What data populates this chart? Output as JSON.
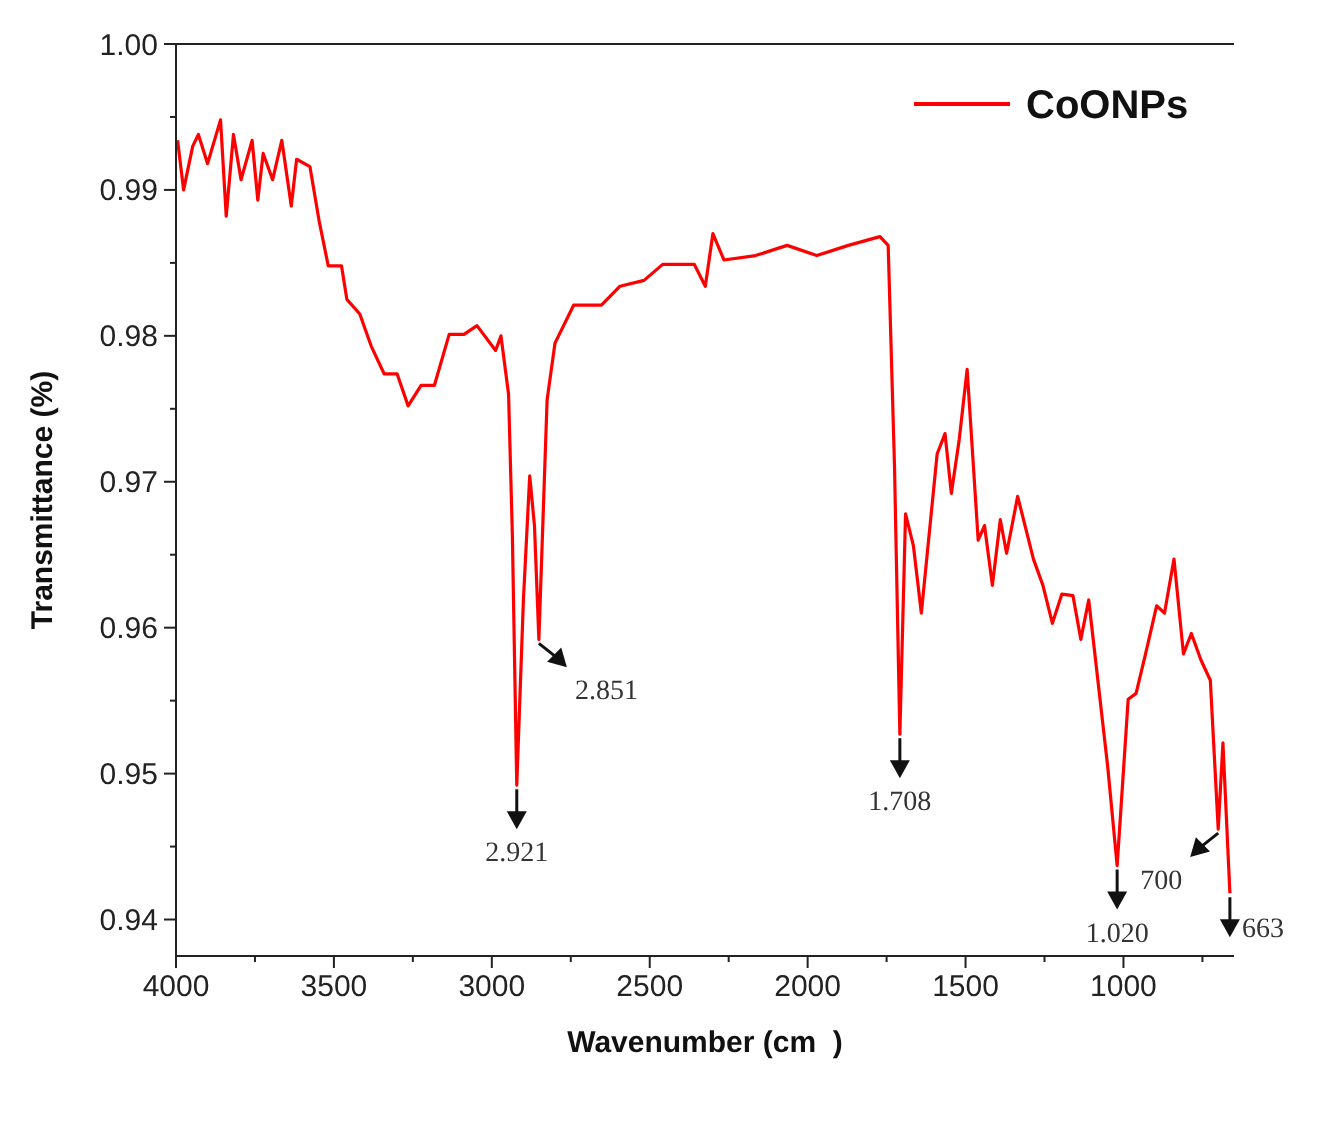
{
  "chart_data": {
    "type": "line",
    "xlabel": "Wavenumber (cm  )",
    "ylabel": "Transmittance (%)",
    "xlim": [
      4000,
      650
    ],
    "ylim": [
      0.9375,
      1.0
    ],
    "xticks": [
      4000,
      {
        "value": 3750,
        "label": null
      },
      3500,
      {
        "value": 3250,
        "label": null
      },
      3000,
      {
        "value": 2750,
        "label": null
      },
      2500,
      {
        "value": 2250,
        "label": null
      },
      2000,
      {
        "value": 1750,
        "label": null
      },
      1500,
      {
        "value": 1250,
        "label": null
      },
      1000,
      {
        "value": 750,
        "label": null
      }
    ],
    "yticks": [
      0.94,
      {
        "value": 0.945,
        "label": null
      },
      0.95,
      {
        "value": 0.955,
        "label": null
      },
      0.96,
      {
        "value": 0.965,
        "label": null
      },
      0.97,
      {
        "value": 0.975,
        "label": null
      },
      0.98,
      {
        "value": 0.985,
        "label": null
      },
      0.99,
      {
        "value": 0.995,
        "label": null
      },
      {
        "value": 1.0,
        "label": "1.00"
      }
    ],
    "legend": "top right",
    "grid": false,
    "marker": "none",
    "line_style": "solid",
    "series": [
      {
        "name": "CoONPs",
        "color": "#ff0000",
        "x": [
          3995,
          3976,
          3947,
          3929,
          3900,
          3859,
          3841,
          3818,
          3794,
          3759,
          3741,
          3724,
          3694,
          3665,
          3635,
          3618,
          3576,
          3547,
          3518,
          3476,
          3459,
          3418,
          3382,
          3341,
          3300,
          3265,
          3224,
          3182,
          3135,
          3088,
          3047,
          2988,
          2971,
          2947,
          2935,
          2921,
          2900,
          2880,
          2865,
          2851,
          2825,
          2800,
          2741,
          2653,
          2594,
          2518,
          2459,
          2359,
          2324,
          2300,
          2265,
          2165,
          2065,
          1971,
          1871,
          1771,
          1745,
          1725,
          1708,
          1690,
          1665,
          1640,
          1590,
          1565,
          1545,
          1520,
          1495,
          1460,
          1440,
          1415,
          1390,
          1370,
          1335,
          1285,
          1255,
          1225,
          1195,
          1160,
          1135,
          1110,
          1050,
          1020,
          985,
          960,
          930,
          895,
          870,
          840,
          810,
          785,
          755,
          725,
          700,
          685,
          663
        ],
        "values": [
          0.9934,
          0.99,
          0.993,
          0.9938,
          0.9918,
          0.9948,
          0.9882,
          0.9938,
          0.9907,
          0.9934,
          0.9893,
          0.9925,
          0.9907,
          0.9934,
          0.9889,
          0.9921,
          0.9916,
          0.9879,
          0.9848,
          0.9848,
          0.9825,
          0.9815,
          0.9793,
          0.9774,
          0.9774,
          0.9752,
          0.9766,
          0.9766,
          0.9801,
          0.9801,
          0.9807,
          0.979,
          0.98,
          0.976,
          0.9664,
          0.9492,
          0.9619,
          0.9704,
          0.967,
          0.9592,
          0.9756,
          0.9795,
          0.9821,
          0.9821,
          0.9834,
          0.9838,
          0.9849,
          0.9849,
          0.9834,
          0.987,
          0.9852,
          0.9855,
          0.9862,
          0.9855,
          0.9862,
          0.9868,
          0.9862,
          0.9711,
          0.9527,
          0.9678,
          0.9656,
          0.961,
          0.9719,
          0.9733,
          0.9692,
          0.9729,
          0.9777,
          0.966,
          0.967,
          0.9629,
          0.9674,
          0.9651,
          0.969,
          0.9647,
          0.9629,
          0.9603,
          0.9623,
          0.9622,
          0.9592,
          0.9619,
          0.9505,
          0.9437,
          0.9551,
          0.9555,
          0.9582,
          0.9615,
          0.961,
          0.9647,
          0.9582,
          0.9596,
          0.9578,
          0.9564,
          0.9462,
          0.9521,
          0.9418
        ]
      }
    ],
    "annotations": [
      {
        "text": "2.921",
        "x": 2921,
        "y": 0.9492
      },
      {
        "text": "2.851",
        "x": 2851,
        "y": 0.9592
      },
      {
        "text": "1.708",
        "x": 1708,
        "y": 0.9527
      },
      {
        "text": "1.020",
        "x": 1020,
        "y": 0.9437
      },
      {
        "text": "700",
        "x": 700,
        "y": 0.9462
      },
      {
        "text": "663",
        "x": 663,
        "y": 0.9418
      }
    ]
  }
}
